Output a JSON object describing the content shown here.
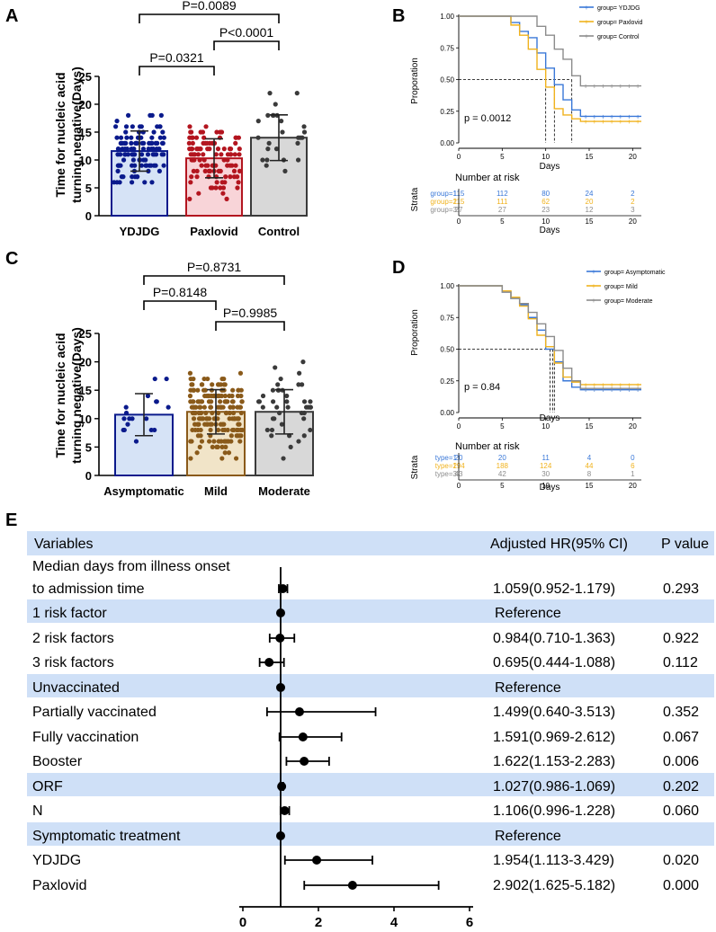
{
  "panels": {
    "A": {
      "label": "A",
      "chart_data": {
        "type": "bar",
        "ylabel_line1": "Time for nucleic acid",
        "ylabel_line2": "turning negative(Days)",
        "yticks": [
          "0",
          "5",
          "10",
          "15",
          "20",
          "25"
        ],
        "ylim": [
          0,
          25
        ],
        "categories": [
          "YDJDG",
          "Paxlovid",
          "Control"
        ],
        "values": [
          11.6,
          10.3,
          14.0
        ],
        "sd": [
          3.6,
          3.5,
          4.1
        ],
        "colors": {
          "fill": [
            "#d6e3f6",
            "#f8d4d8",
            "#d8d8d8"
          ],
          "edge": [
            "#0a1a8c",
            "#b3151f",
            "#3a3a3a"
          ]
        },
        "comparisons": [
          {
            "from": 1,
            "to": 2,
            "label": "P=0.0321"
          },
          {
            "from": 2,
            "to": 3,
            "label": "P<0.0001"
          },
          {
            "from": 1,
            "to": 3,
            "label": "P=0.0089"
          }
        ]
      }
    },
    "B": {
      "label": "B",
      "chart_data": {
        "type": "line",
        "ylabel": "Proporation",
        "xlabel": "Days",
        "yticks": [
          "0.00",
          "0.25",
          "0.50",
          "0.75",
          "1.00"
        ],
        "xticks": [
          "0",
          "5",
          "10",
          "15",
          "20"
        ],
        "xlim": [
          0,
          21
        ],
        "ylim": [
          0,
          1
        ],
        "legend": [
          "group= YDJDG",
          "group= Paxlovid",
          "group= Control"
        ],
        "pvalue": "p = 0.0012",
        "series": [
          {
            "name": "group= YDJDG",
            "color": "#3a78d8",
            "x": [
              0,
              5,
              6,
              7,
              8,
              9,
              10,
              11,
              12,
              13,
              14,
              20,
              21
            ],
            "y": [
              1,
              1,
              0.95,
              0.88,
              0.83,
              0.71,
              0.59,
              0.46,
              0.34,
              0.26,
              0.21,
              0.21,
              0.21
            ],
            "median": 11
          },
          {
            "name": "group= Paxlovid",
            "color": "#f0b21d",
            "x": [
              0,
              5,
              6,
              7,
              8,
              9,
              10,
              11,
              12,
              13,
              14,
              20,
              21
            ],
            "y": [
              1,
              1,
              0.93,
              0.85,
              0.74,
              0.58,
              0.44,
              0.27,
              0.22,
              0.19,
              0.17,
              0.17,
              0.17
            ],
            "median": 10
          },
          {
            "name": "group= Control",
            "color": "#8c8c8c",
            "x": [
              0,
              7,
              9,
              10,
              11,
              12,
              13,
              14,
              20,
              21
            ],
            "y": [
              1,
              1,
              0.92,
              0.85,
              0.74,
              0.66,
              0.53,
              0.45,
              0.45,
              0.45
            ],
            "median": 13
          }
        ],
        "risk_table": {
          "title": "Number at risk",
          "strata_label": "Strata",
          "xlabel": "Days",
          "rows": [
            {
              "label": "group=1",
              "color": "#3a78d8",
              "values": [
                "115",
                "112",
                "80",
                "24",
                "2"
              ]
            },
            {
              "label": "group=2",
              "color": "#f0b21d",
              "values": [
                "115",
                "111",
                "62",
                "20",
                "2"
              ]
            },
            {
              "label": "group=3",
              "color": "#8c8c8c",
              "values": [
                "27",
                "27",
                "23",
                "12",
                "3"
              ]
            }
          ]
        }
      }
    },
    "C": {
      "label": "C",
      "chart_data": {
        "type": "bar",
        "ylabel_line1": "Time for nucleic acid",
        "ylabel_line2": "turning negative(Days)",
        "yticks": [
          "0",
          "5",
          "10",
          "15",
          "20",
          "25"
        ],
        "ylim": [
          0,
          25
        ],
        "categories": [
          "Asymptomatic",
          "Mild",
          "Moderate"
        ],
        "values": [
          10.7,
          11.2,
          11.2
        ],
        "sd": [
          3.7,
          3.9,
          3.9
        ],
        "colors": {
          "fill": [
            "#d6e3f6",
            "#f1e4c8",
            "#d8d8d8"
          ],
          "edge": [
            "#0a1a8c",
            "#8a5a1a",
            "#3a3a3a"
          ]
        },
        "comparisons": [
          {
            "from": 1,
            "to": 2,
            "label": "P=0.8148"
          },
          {
            "from": 2,
            "to": 3,
            "label": "P=0.9985"
          },
          {
            "from": 1,
            "to": 3,
            "label": "P=0.8731"
          }
        ]
      }
    },
    "D": {
      "label": "D",
      "chart_data": {
        "type": "line",
        "ylabel": "Proporation",
        "xlabel": "Days",
        "yticks": [
          "0.00",
          "0.25",
          "0.50",
          "0.75",
          "1.00"
        ],
        "xticks": [
          "0",
          "5",
          "10",
          "15",
          "20"
        ],
        "xlim": [
          0,
          21
        ],
        "ylim": [
          0,
          1
        ],
        "legend": [
          "group= Asymptomatic",
          "group= Mild",
          "group= Moderate"
        ],
        "pvalue": "p = 0.84",
        "series": [
          {
            "name": "group= Asymptomatic",
            "color": "#3a78d8",
            "x": [
              0,
              4,
              5,
              6,
              7,
              8,
              9,
              10,
              11,
              12,
              13,
              14,
              20,
              21
            ],
            "y": [
              1,
              1,
              0.95,
              0.9,
              0.85,
              0.75,
              0.65,
              0.5,
              0.4,
              0.25,
              0.2,
              0.18,
              0.18,
              0.18
            ],
            "median": 10.5
          },
          {
            "name": "group= Mild",
            "color": "#f0b21d",
            "x": [
              0,
              4,
              5,
              6,
              7,
              8,
              9,
              10,
              11,
              12,
              13,
              14,
              20,
              21
            ],
            "y": [
              1,
              1,
              0.96,
              0.91,
              0.84,
              0.74,
              0.61,
              0.52,
              0.39,
              0.28,
              0.24,
              0.22,
              0.22,
              0.22
            ],
            "median": 10.8
          },
          {
            "name": "group= Moderate",
            "color": "#8c8c8c",
            "x": [
              0,
              4,
              5,
              6,
              7,
              8,
              9,
              10,
              11,
              12,
              13,
              14,
              20,
              21
            ],
            "y": [
              1,
              1,
              0.95,
              0.9,
              0.86,
              0.79,
              0.7,
              0.6,
              0.49,
              0.35,
              0.25,
              0.19,
              0.19,
              0.19
            ],
            "median": 11
          }
        ],
        "risk_table": {
          "title": "Number at risk",
          "strata_label": "Strata",
          "xlabel": "Days",
          "rows": [
            {
              "label": "type=1",
              "color": "#3a78d8",
              "values": [
                "20",
                "20",
                "11",
                "4",
                "0"
              ]
            },
            {
              "label": "type=2",
              "color": "#f0b21d",
              "values": [
                "194",
                "188",
                "124",
                "44",
                "6"
              ]
            },
            {
              "label": "type=3",
              "color": "#8c8c8c",
              "values": [
                "43",
                "42",
                "30",
                "8",
                "1"
              ]
            }
          ]
        }
      }
    },
    "E": {
      "label": "E",
      "chart_data": {
        "type": "forest",
        "headers": {
          "variables": "Variables",
          "hr": "Adjusted HR(95% CI)",
          "p": "P value"
        },
        "xticks": [
          "0",
          "2",
          "4",
          "6"
        ],
        "xlim": [
          0,
          6
        ],
        "reference_line": 1,
        "rows": [
          {
            "label": "Median days from illness onset",
            "label2": "to admission time",
            "hr": 1.059,
            "lo": 0.952,
            "hi": 1.179,
            "text": "1.059(0.952-1.179)",
            "p": "0.293",
            "shaded": false
          },
          {
            "label": "1 risk factor",
            "hr": 1,
            "lo": 1,
            "hi": 1,
            "text": "Reference",
            "p": "",
            "shaded": true
          },
          {
            "label": "2 risk factors",
            "hr": 0.984,
            "lo": 0.71,
            "hi": 1.363,
            "text": "0.984(0.710-1.363)",
            "p": "0.922",
            "shaded": false
          },
          {
            "label": "3 risk factors",
            "hr": 0.695,
            "lo": 0.444,
            "hi": 1.088,
            "text": "0.695(0.444-1.088)",
            "p": "0.112",
            "shaded": false
          },
          {
            "label": "Unvaccinated",
            "hr": 1,
            "lo": 1,
            "hi": 1,
            "text": "Reference",
            "p": "",
            "shaded": true
          },
          {
            "label": "Partially vaccinated",
            "hr": 1.499,
            "lo": 0.64,
            "hi": 3.513,
            "text": "1.499(0.640-3.513)",
            "p": "0.352",
            "shaded": false
          },
          {
            "label": "Fully vaccination",
            "hr": 1.591,
            "lo": 0.969,
            "hi": 2.612,
            "text": "1.591(0.969-2.612)",
            "p": "0.067",
            "shaded": false
          },
          {
            "label": "Booster",
            "hr": 1.622,
            "lo": 1.153,
            "hi": 2.283,
            "text": "1.622(1.153-2.283)",
            "p": "0.006",
            "shaded": false
          },
          {
            "label": "ORF",
            "hr": 1.027,
            "lo": 0.986,
            "hi": 1.069,
            "text": "1.027(0.986-1.069)",
            "p": "0.202",
            "shaded": true
          },
          {
            "label": "N",
            "hr": 1.106,
            "lo": 0.996,
            "hi": 1.228,
            "text": "1.106(0.996-1.228)",
            "p": "0.060",
            "shaded": false
          },
          {
            "label": "Symptomatic treatment",
            "hr": 1,
            "lo": 1,
            "hi": 1,
            "text": "Reference",
            "p": "",
            "shaded": true
          },
          {
            "label": "YDJDG",
            "hr": 1.954,
            "lo": 1.113,
            "hi": 3.429,
            "text": "1.954(1.113-3.429)",
            "p": "0.020",
            "shaded": false
          },
          {
            "label": "Paxlovid",
            "hr": 2.902,
            "lo": 1.625,
            "hi": 5.182,
            "text": "2.902(1.625-5.182)",
            "p": "0.000",
            "shaded": false
          }
        ]
      }
    }
  }
}
